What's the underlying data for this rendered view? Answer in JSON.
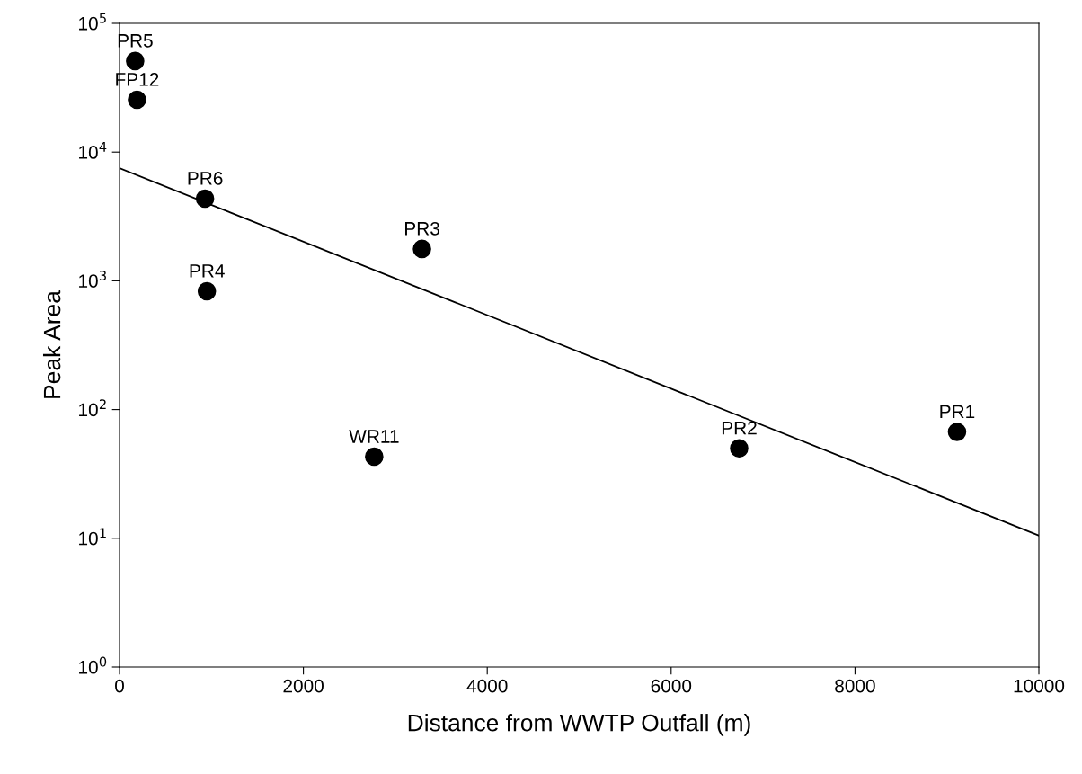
{
  "chart_data": {
    "type": "scatter",
    "xlabel": "Distance from WWTP Outfall (m)",
    "ylabel": "Peak Area",
    "log": "y",
    "xlim": [
      0,
      10000
    ],
    "xticks": [
      0,
      2000,
      4000,
      6000,
      8000,
      10000
    ],
    "ylim": [
      1,
      100000
    ],
    "yticks": [
      {
        "value": 1,
        "label": "10$^{0}$"
      },
      {
        "value": 10,
        "label": "10$^{1}$"
      },
      {
        "value": 100,
        "label": "10$^{2}$"
      },
      {
        "value": 1000,
        "label": "10$^{3}$"
      },
      {
        "value": 10000,
        "label": "10$^{4}$"
      },
      {
        "value": 100000,
        "label": "10$^{5}$"
      }
    ],
    "grid": false,
    "legend": false,
    "series": [
      {
        "color": "#000000",
        "marker": "circle",
        "x": [
          170,
          190,
          930,
          950,
          3290,
          2770,
          6740,
          9110
        ],
        "values": [
          51000,
          25500,
          4350,
          830,
          1770,
          43,
          50,
          67
        ]
      },
      {
        "type": "line",
        "color": "#000000",
        "marker": "none",
        "line_style": "solid",
        "x": [
          0,
          10000
        ],
        "values": [
          7500,
          10.5
        ]
      }
    ],
    "annotations": [
      {
        "text": "PR5",
        "x": 170,
        "y": 51000
      },
      {
        "text": "FP12",
        "x": 190,
        "y": 25500
      },
      {
        "text": "PR6",
        "x": 930,
        "y": 4350
      },
      {
        "text": "PR4",
        "x": 950,
        "y": 830
      },
      {
        "text": "PR3",
        "x": 3290,
        "y": 1770
      },
      {
        "text": "WR11",
        "x": 2770,
        "y": 43
      },
      {
        "text": "PR2",
        "x": 6740,
        "y": 50
      },
      {
        "text": "PR1",
        "x": 9110,
        "y": 67
      }
    ]
  }
}
